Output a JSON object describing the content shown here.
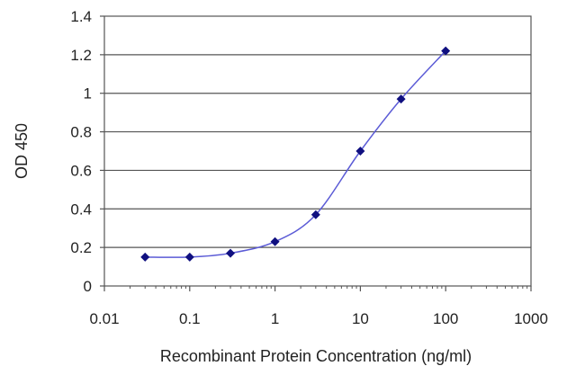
{
  "chart_data": {
    "type": "scatter",
    "xlabel": "Recombinant Protein Concentration (ng/ml)",
    "ylabel": "OD 450",
    "x_scale": "log",
    "xlim": [
      0.01,
      1000
    ],
    "ylim": [
      0,
      1.4
    ],
    "grid": "horizontal",
    "x_ticks": [
      "0.01",
      "0.1",
      "1",
      "10",
      "100",
      "1000"
    ],
    "y_ticks": [
      "0",
      "0.2",
      "0.4",
      "0.6",
      "0.8",
      "1",
      "1.2",
      "1.4"
    ],
    "series": [
      {
        "x": [
          0.03,
          0.1,
          0.3,
          1,
          3,
          10,
          30,
          100
        ],
        "y": [
          0.15,
          0.15,
          0.17,
          0.23,
          0.37,
          0.7,
          0.97,
          1.22
        ]
      }
    ],
    "colors": {
      "line": "#5b5bd6",
      "marker": "#101080",
      "grid": "#555555",
      "frame": "#555555"
    }
  }
}
